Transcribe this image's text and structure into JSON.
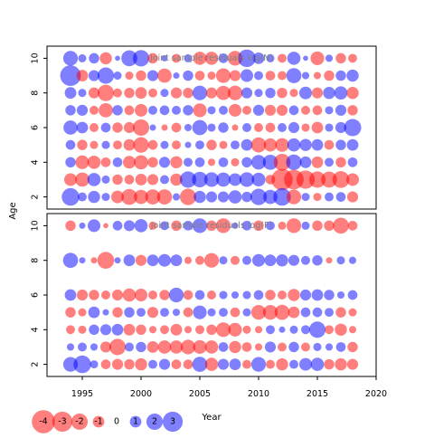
{
  "chart_data": {
    "type": "scatter",
    "ylabel": "Age",
    "xlabel": "Year",
    "xlim": [
      1992,
      2020
    ],
    "x_ticks": [
      "1995",
      "2000",
      "2005",
      "2010",
      "2015",
      "2020"
    ],
    "colors": {
      "negative": "#ff0000",
      "positive": "#0000ff",
      "alpha": 0.5
    },
    "years": [
      1994,
      1995,
      1996,
      1997,
      1998,
      1999,
      2000,
      2001,
      2002,
      2003,
      2004,
      2005,
      2006,
      2007,
      2008,
      2009,
      2010,
      2011,
      2012,
      2013,
      2014,
      2015,
      2016,
      2017,
      2018
    ],
    "panels": [
      {
        "title": "Joint sample residuals log(N)",
        "ages": [
          10,
          9,
          8,
          7,
          6,
          5,
          4,
          3,
          2
        ],
        "y_ticks": [
          "2",
          "4",
          "6",
          "8",
          "10"
        ],
        "ylim": [
          1.3,
          10.7
        ],
        "residuals": [
          [
            1.6,
            0.5,
            0.8,
            -1.1,
            0.2,
            1.9,
            2.0,
            -0.8,
            0.3,
            -0.6,
            0.5,
            -1.3,
            -1.3,
            0.7,
            -1.6,
            2.3,
            1.0,
            0.5,
            -0.6,
            1.3,
            0.2,
            -1.4,
            0.4,
            -0.8,
            -0.6
          ],
          [
            3.2,
            -1.0,
            0.9,
            2.0,
            0.5,
            -0.5,
            -0.8,
            0.9,
            -1.5,
            0.3,
            0.8,
            -0.7,
            -0.5,
            -1.6,
            -0.9,
            1.2,
            0.6,
            -0.7,
            -0.6,
            1.7,
            0.4,
            -0.4,
            -0.8,
            0.8,
            1.1
          ],
          [
            1.0,
            0.5,
            -0.9,
            -2.0,
            -0.6,
            -0.8,
            -1.0,
            -0.6,
            0.5,
            -0.9,
            -0.8,
            1.6,
            -0.9,
            -1.5,
            -1.6,
            0.9,
            0.5,
            0.8,
            -0.8,
            -0.5,
            1.2,
            -0.9,
            1.1,
            1.3,
            -1.1
          ],
          [
            0.8,
            0.9,
            -0.6,
            -1.5,
            0.8,
            -0.7,
            -1.2,
            0.6,
            0.7,
            0.6,
            0.8,
            -1.4,
            0.5,
            0.6,
            -1.2,
            -0.6,
            0.9,
            -0.9,
            -0.9,
            0.7,
            -0.6,
            -0.7,
            0.5,
            0.9,
            -0.8
          ],
          [
            1.5,
            1.0,
            -0.6,
            0.7,
            -0.8,
            -0.9,
            -2.0,
            0.3,
            -0.3,
            -0.7,
            0.4,
            1.7,
            0.5,
            0.8,
            -0.3,
            0.6,
            -0.6,
            -0.7,
            0.6,
            0.9,
            -0.5,
            -1.0,
            0.5,
            0.9,
            2.2
          ],
          [
            0.7,
            -0.8,
            -0.5,
            0.5,
            -0.6,
            -1.0,
            -1.8,
            -0.7,
            0.5,
            -0.6,
            0.3,
            0.6,
            -0.8,
            -0.5,
            0.6,
            1.0,
            -1.7,
            -1.3,
            -1.4,
            1.3,
            1.1,
            1.0,
            -0.7,
            0.8,
            1.0
          ],
          [
            0.8,
            -1.4,
            -1.3,
            -0.7,
            0.7,
            -1.2,
            -1.5,
            -0.8,
            0.9,
            -1.1,
            0.6,
            0.7,
            -0.4,
            0.7,
            -0.5,
            0.8,
            1.6,
            1.7,
            -2.1,
            1.8,
            1.0,
            -1.0,
            0.6,
            -0.8,
            0.7
          ],
          [
            -1.2,
            -1.5,
            1.3,
            0.5,
            -0.8,
            -0.7,
            -1.0,
            -0.9,
            0.6,
            -1.1,
            2.0,
            1.8,
            1.6,
            1.5,
            1.2,
            1.6,
            1.4,
            -0.7,
            -3.4,
            -2.9,
            -2.5,
            -2.0,
            -1.9,
            -2.1,
            -1.2
          ],
          [
            2.3,
            0.6,
            1.1,
            0.5,
            -1.2,
            -1.9,
            -1.5,
            -1.7,
            -1.7,
            0.4,
            -2.0,
            1.1,
            0.9,
            0.9,
            1.3,
            0.8,
            2.0,
            1.5,
            2.3,
            -1.6,
            0.5,
            -0.5,
            0.6,
            0.7,
            -0.9
          ]
        ]
      },
      {
        "title": "Joint sample residuals log(F)",
        "ages": [
          10,
          8,
          6,
          5,
          4,
          3,
          2
        ],
        "y_ticks": [
          "2",
          "4",
          "6",
          "8",
          "10"
        ],
        "ylim": [
          1.3,
          10.7
        ],
        "residuals": [
          [
            -0.8,
            0.3,
            1.2,
            -0.2,
            0.7,
            0.9,
            1.3,
            -0.5,
            0.6,
            -0.8,
            0.7,
            1.6,
            -0.8,
            -1.6,
            0.3,
            0.7,
            -0.8,
            0.6,
            -0.5,
            -1.6,
            0.5,
            -0.8,
            -0.8,
            -1.9,
            -0.7
          ],
          [
            1.7,
            0.3,
            -0.3,
            -2.1,
            0.3,
            1.0,
            -0.9,
            1.0,
            1.2,
            1.0,
            -0.4,
            -0.6,
            -1.6,
            0.5,
            -0.6,
            0.6,
            1.2,
            1.0,
            1.1,
            0.9,
            0.6,
            0.8,
            -0.3,
            0.5,
            0.4
          ],
          [
            1.0,
            -0.9,
            -0.8,
            -0.6,
            -0.9,
            -1.3,
            -1.2,
            -0.6,
            -0.8,
            1.6,
            -0.7,
            0.7,
            -0.6,
            0.5,
            0.4,
            0.5,
            0.7,
            -0.8,
            -0.6,
            -1.1,
            0.9,
            1.0,
            0.8,
            0.4,
            0.7
          ],
          [
            -0.8,
            -0.5,
            1.0,
            0.3,
            -0.8,
            0.8,
            0.6,
            -0.9,
            0.6,
            0.4,
            -0.7,
            1.4,
            0.5,
            0.6,
            -0.7,
            0.5,
            -1.6,
            -1.6,
            -1.7,
            -1.0,
            0.7,
            0.7,
            0.6,
            -0.8,
            -0.5
          ],
          [
            -0.6,
            -0.5,
            0.8,
            0.9,
            1.0,
            -1.0,
            -0.8,
            -0.4,
            -0.6,
            -1.0,
            -0.4,
            -0.6,
            -0.8,
            -1.6,
            -1.4,
            -0.5,
            -0.4,
            0.6,
            0.3,
            0.5,
            0.6,
            2.0,
            -0.6,
            -1.1,
            -0.4
          ],
          [
            0.4,
            0.6,
            0.4,
            -0.9,
            -2.0,
            0.6,
            0.8,
            -1.0,
            -1.3,
            -1.3,
            -1.6,
            -1.4,
            -1.3,
            0.7,
            -1.1,
            -0.7,
            -0.4,
            0.9,
            -0.6,
            0.8,
            -0.6,
            0.5,
            0.4,
            0.7,
            -0.8
          ],
          [
            1.6,
            2.3,
            0.5,
            -0.7,
            -0.9,
            -0.8,
            -1.1,
            0.6,
            0.9,
            -0.7,
            -0.7,
            1.7,
            -1.3,
            0.9,
            1.0,
            -0.6,
            1.6,
            -0.6,
            -1.1,
            0.6,
            1.2,
            1.3,
            -0.8,
            -1.1,
            -0.9
          ]
        ]
      }
    ],
    "legend": {
      "values": [
        -4,
        -3,
        -2,
        -1,
        0,
        1,
        2,
        3
      ],
      "labels": [
        "-4",
        "-3",
        "-2",
        "-1",
        "0",
        "1",
        "2",
        "3"
      ]
    }
  }
}
